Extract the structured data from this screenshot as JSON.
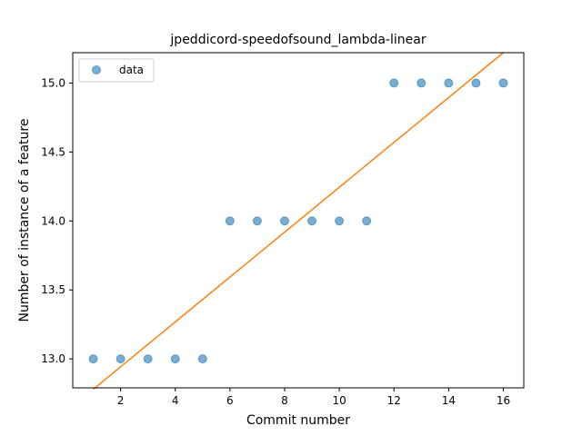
{
  "chart_data": {
    "type": "scatter",
    "title": "jpeddicord-speedofsound_lambda-linear",
    "xlabel": "Commit number",
    "ylabel": "Number of instance of a feature",
    "xlim": [
      0.25,
      16.75
    ],
    "ylim": [
      12.79,
      15.22
    ],
    "xticks": [
      2,
      4,
      6,
      8,
      10,
      12,
      14,
      16
    ],
    "yticks": [
      13.0,
      13.5,
      14.0,
      14.5,
      15.0
    ],
    "ytick_labels": [
      "13.0",
      "13.5",
      "14.0",
      "14.5",
      "15.0"
    ],
    "grid": false,
    "legend_position": "upper-left",
    "series": [
      {
        "name": "data",
        "kind": "scatter",
        "color": "#1f77b4",
        "x": [
          1,
          2,
          3,
          4,
          5,
          6,
          7,
          8,
          9,
          10,
          11,
          12,
          13,
          14,
          15,
          16
        ],
        "y": [
          13,
          13,
          13,
          13,
          13,
          14,
          14,
          14,
          14,
          14,
          14,
          15,
          15,
          15,
          15,
          15
        ]
      },
      {
        "kind": "line",
        "color": "#ff7f0e",
        "x": [
          1,
          16
        ],
        "y": [
          12.78,
          15.22
        ]
      }
    ]
  }
}
